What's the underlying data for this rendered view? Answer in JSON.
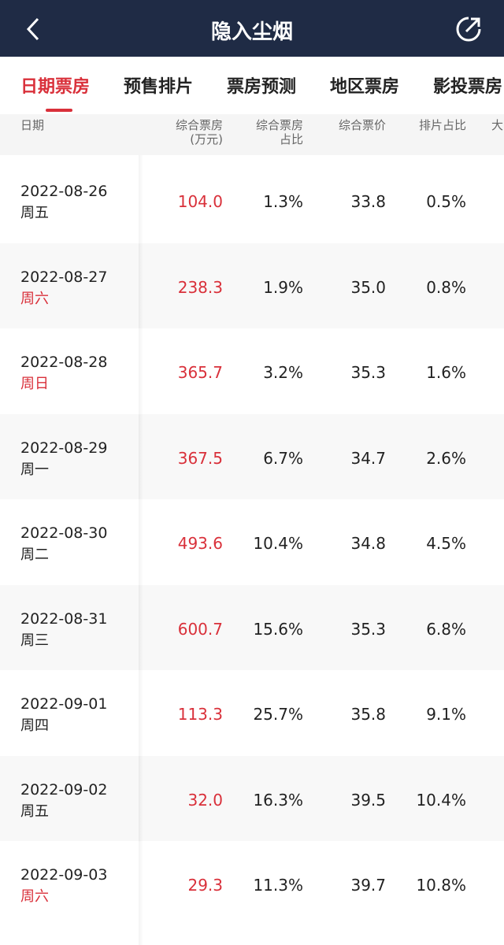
{
  "header": {
    "title": "隐入尘烟"
  },
  "tabs": [
    "日期票房",
    "预售排片",
    "票房预测",
    "地区票房",
    "影投票房"
  ],
  "active_tab_color": "#d9303a",
  "table": {
    "columns": [
      {
        "label": "日期"
      },
      {
        "label": "综合票房",
        "sub": "(万元)"
      },
      {
        "label": "综合票房",
        "sub": "占比"
      },
      {
        "label": "综合票价"
      },
      {
        "label": "排片占比"
      },
      {
        "label": "大"
      }
    ],
    "rows": [
      {
        "date": "2022-08-26",
        "weekday": "周五",
        "weekday_color": "#222222",
        "box_office": "104.0",
        "share": "1.3%",
        "price": "33.8",
        "screening": "0.5%"
      },
      {
        "date": "2022-08-27",
        "weekday": "周六",
        "weekday_color": "#d9303a",
        "box_office": "238.3",
        "share": "1.9%",
        "price": "35.0",
        "screening": "0.8%"
      },
      {
        "date": "2022-08-28",
        "weekday": "周日",
        "weekday_color": "#d9303a",
        "box_office": "365.7",
        "share": "3.2%",
        "price": "35.3",
        "screening": "1.6%"
      },
      {
        "date": "2022-08-29",
        "weekday": "周一",
        "weekday_color": "#222222",
        "box_office": "367.5",
        "share": "6.7%",
        "price": "34.7",
        "screening": "2.6%"
      },
      {
        "date": "2022-08-30",
        "weekday": "周二",
        "weekday_color": "#222222",
        "box_office": "493.6",
        "share": "10.4%",
        "price": "34.8",
        "screening": "4.5%"
      },
      {
        "date": "2022-08-31",
        "weekday": "周三",
        "weekday_color": "#222222",
        "box_office": "600.7",
        "share": "15.6%",
        "price": "35.3",
        "screening": "6.8%"
      },
      {
        "date": "2022-09-01",
        "weekday": "周四",
        "weekday_color": "#222222",
        "box_office": "113.3",
        "share": "25.7%",
        "price": "35.8",
        "screening": "9.1%"
      },
      {
        "date": "2022-09-02",
        "weekday": "周五",
        "weekday_color": "#222222",
        "box_office": "32.0",
        "share": "16.3%",
        "price": "39.5",
        "screening": "10.4%"
      },
      {
        "date": "2022-09-03",
        "weekday": "周六",
        "weekday_color": "#d9303a",
        "box_office": "29.3",
        "share": "11.3%",
        "price": "39.7",
        "screening": "10.8%"
      }
    ]
  }
}
